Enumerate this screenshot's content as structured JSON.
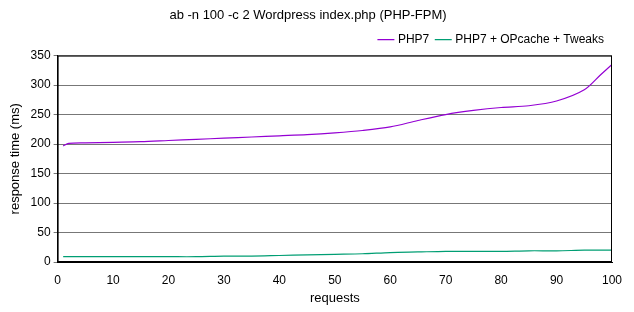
{
  "chart_data": {
    "type": "line",
    "title": "ab -n 100 -c 2 Wordpress index.php (PHP-FPM)",
    "x_label": "requests",
    "y_label": "response time (ms)",
    "x": [
      1,
      2,
      5,
      10,
      15,
      20,
      25,
      30,
      35,
      40,
      45,
      50,
      55,
      60,
      65,
      70,
      75,
      80,
      85,
      90,
      95,
      98,
      100
    ],
    "series": [
      {
        "name": "PHP7",
        "color": "#9400d3",
        "values": [
          197,
          201,
          202,
          203,
          204,
          206,
          208,
          210,
          212,
          214,
          216,
          219,
          223,
          229,
          240,
          250,
          257,
          262,
          265,
          273,
          292,
          318,
          335
        ]
      },
      {
        "name": "PHP7 + OPcache + Tweaks",
        "color": "#009e73",
        "values": [
          9,
          9,
          9,
          9,
          9,
          9,
          9,
          10,
          10,
          11,
          12,
          13,
          14,
          16,
          17,
          18,
          18,
          18,
          19,
          19,
          20,
          20,
          20
        ]
      }
    ],
    "xlim": [
      0,
      100
    ],
    "xticks": [
      0,
      10,
      20,
      30,
      40,
      50,
      60,
      70,
      80,
      90,
      100
    ],
    "ylim": [
      0,
      350
    ],
    "yticks": [
      0,
      50,
      100,
      150,
      200,
      250,
      300,
      350
    ],
    "grid": true,
    "legend": "upper right"
  }
}
